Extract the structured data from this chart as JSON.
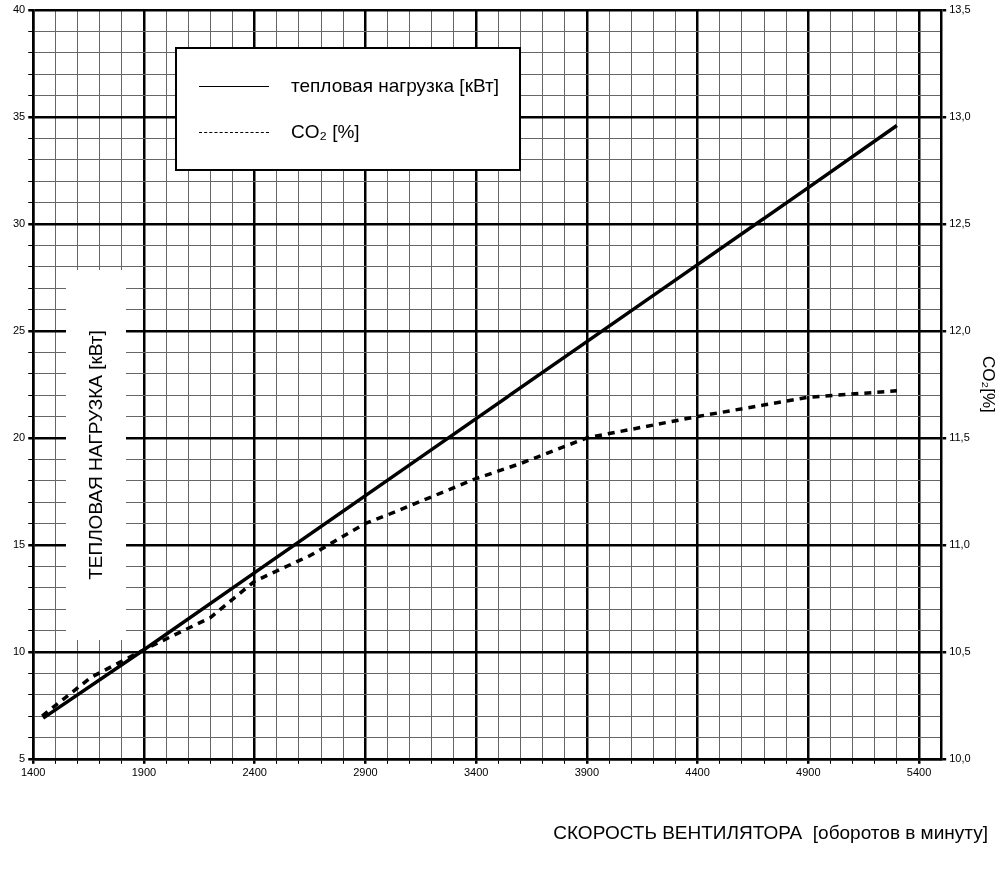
{
  "chart_data": {
    "type": "line",
    "xlabel": "СКОРОСТЬ ВЕНТИЛЯТОРА  [оборотов в минуту]",
    "ylabel": "ТЕПЛОВАЯ НАГРУЗКА [кВт]",
    "y2label": "CO₂[%]",
    "series": [
      {
        "name": "тепловая нагрузка [кВт]",
        "color": "#000000",
        "line_style": "solid",
        "x": [
          1445,
          1900,
          2400,
          2900,
          3400,
          3900,
          4400,
          4900,
          5300
        ],
        "values": [
          6.9,
          10.1,
          13.7,
          17.3,
          20.9,
          24.5,
          28.1,
          31.7,
          34.6
        ]
      },
      {
        "name": "CO₂ [%]",
        "color": "#000000",
        "line_style": "dashed",
        "axis": "y2",
        "x": [
          1440,
          1660,
          1900,
          2200,
          2400,
          2650,
          2900,
          3000,
          3400,
          3600,
          3900,
          4400,
          4900,
          5300
        ],
        "values": [
          10.2,
          10.38,
          10.51,
          10.66,
          10.83,
          10.95,
          11.1,
          11.14,
          11.31,
          11.38,
          11.5,
          11.6,
          11.69,
          11.72
        ]
      }
    ],
    "xlim": [
      1400,
      5500
    ],
    "xticks": [
      1400,
      {
        "value": 1500,
        "label": null
      },
      {
        "value": 1600,
        "label": null
      },
      {
        "value": 1700,
        "label": null
      },
      {
        "value": 1800,
        "label": null
      },
      1900,
      {
        "value": 2000,
        "label": null
      },
      {
        "value": 2100,
        "label": null
      },
      {
        "value": 2200,
        "label": null
      },
      {
        "value": 2300,
        "label": null
      },
      2400,
      {
        "value": 2500,
        "label": null
      },
      {
        "value": 2600,
        "label": null
      },
      {
        "value": 2700,
        "label": null
      },
      {
        "value": 2800,
        "label": null
      },
      2900,
      {
        "value": 3000,
        "label": null
      },
      {
        "value": 3100,
        "label": null
      },
      {
        "value": 3200,
        "label": null
      },
      {
        "value": 3300,
        "label": null
      },
      3400,
      {
        "value": 3500,
        "label": null
      },
      {
        "value": 3600,
        "label": null
      },
      {
        "value": 3700,
        "label": null
      },
      {
        "value": 3800,
        "label": null
      },
      3900,
      {
        "value": 4000,
        "label": null
      },
      {
        "value": 4100,
        "label": null
      },
      {
        "value": 4200,
        "label": null
      },
      {
        "value": 4300,
        "label": null
      },
      4400,
      {
        "value": 4500,
        "label": null
      },
      {
        "value": 4600,
        "label": null
      },
      {
        "value": 4700,
        "label": null
      },
      {
        "value": 4800,
        "label": null
      },
      4900,
      {
        "value": 5000,
        "label": null
      },
      {
        "value": 5100,
        "label": null
      },
      {
        "value": 5200,
        "label": null
      },
      {
        "value": 5300,
        "label": null
      },
      5400
    ],
    "ylim": [
      5,
      40
    ],
    "yticks": [
      5,
      {
        "value": 6,
        "label": null
      },
      {
        "value": 7,
        "label": null
      },
      {
        "value": 8,
        "label": null
      },
      {
        "value": 9,
        "label": null
      },
      10,
      {
        "value": 11,
        "label": null
      },
      {
        "value": 12,
        "label": null
      },
      {
        "value": 13,
        "label": null
      },
      {
        "value": 14,
        "label": null
      },
      15,
      {
        "value": 16,
        "label": null
      },
      {
        "value": 17,
        "label": null
      },
      {
        "value": 18,
        "label": null
      },
      {
        "value": 19,
        "label": null
      },
      20,
      {
        "value": 21,
        "label": null
      },
      {
        "value": 22,
        "label": null
      },
      {
        "value": 23,
        "label": null
      },
      {
        "value": 24,
        "label": null
      },
      25,
      {
        "value": 26,
        "label": null
      },
      {
        "value": 27,
        "label": null
      },
      {
        "value": 28,
        "label": null
      },
      {
        "value": 29,
        "label": null
      },
      30,
      {
        "value": 31,
        "label": null
      },
      {
        "value": 32,
        "label": null
      },
      {
        "value": 33,
        "label": null
      },
      {
        "value": 34,
        "label": null
      },
      35,
      {
        "value": 36,
        "label": null
      },
      {
        "value": 37,
        "label": null
      },
      {
        "value": 38,
        "label": null
      },
      {
        "value": 39,
        "label": null
      },
      40
    ],
    "y2lim": [
      10,
      13.5
    ],
    "y2ticks": [
      {
        "value": 10,
        "label": "10,0"
      },
      {
        "value": 10.5,
        "label": "10,5"
      },
      {
        "value": 11,
        "label": "11,0"
      },
      {
        "value": 11.5,
        "label": "11,5"
      },
      {
        "value": 12,
        "label": "12,0"
      },
      {
        "value": 12.5,
        "label": "12,5"
      },
      {
        "value": 13,
        "label": "13,0"
      },
      {
        "value": 13.5,
        "label": "13,5"
      }
    ],
    "grid": true,
    "legend": "top left"
  }
}
